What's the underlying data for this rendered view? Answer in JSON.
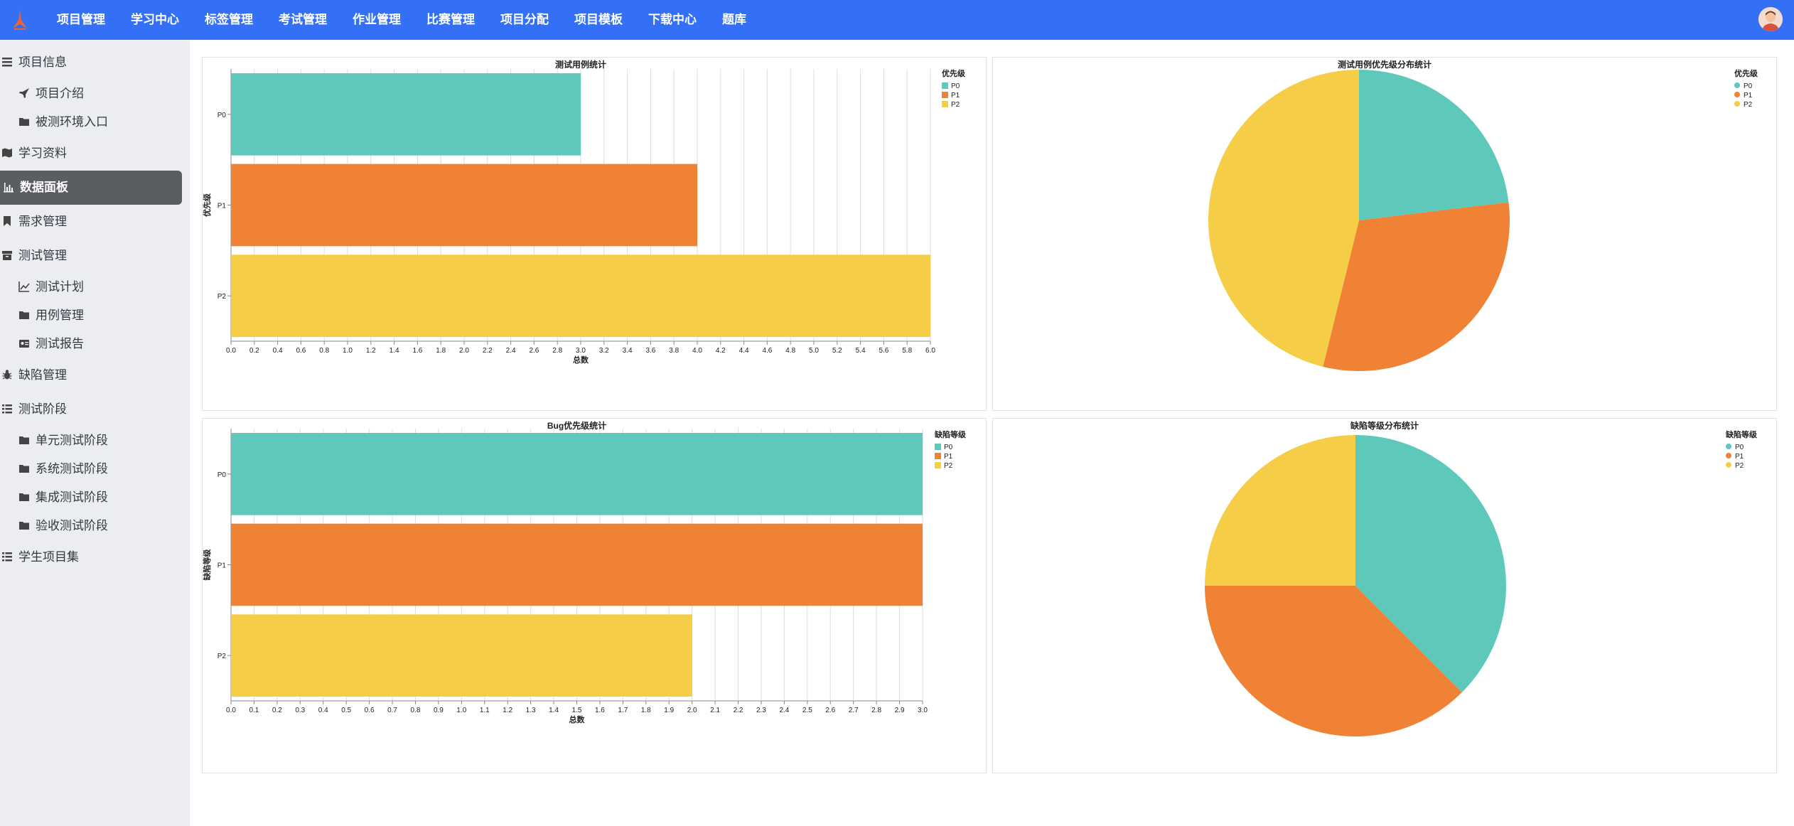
{
  "topnav": {
    "items": [
      "项目管理",
      "学习中心",
      "标签管理",
      "考试管理",
      "作业管理",
      "比赛管理",
      "项目分配",
      "项目模板",
      "下载中心",
      "题库"
    ]
  },
  "sidebar": {
    "project_info": "项目信息",
    "project_intro": "项目介绍",
    "test_env": "被测环境入口",
    "study": "学习资料",
    "dashboard": "数据面板",
    "requirements": "需求管理",
    "test_mgmt": "测试管理",
    "test_plan": "测试计划",
    "case_mgmt": "用例管理",
    "test_report": "测试报告",
    "defect_mgmt": "缺陷管理",
    "test_stage": "测试阶段",
    "unit_stage": "单元测试阶段",
    "system_stage": "系统测试阶段",
    "integration_stage": "集成测试阶段",
    "acceptance_stage": "验收测试阶段",
    "student_projects": "学生项目集"
  },
  "colors": {
    "P0": "#5ec9bb",
    "P1": "#ef8234",
    "P2": "#f6cd46",
    "nav": "#3370f5",
    "sidebar": "#ebedf1",
    "active": "#5a5e63"
  },
  "chart_data": [
    {
      "type": "bar",
      "title": "测试用例统计",
      "ylabel": "优先级",
      "xlabel": "总数",
      "categories": [
        "P0",
        "P1",
        "P2"
      ],
      "values": [
        3,
        4,
        6
      ],
      "xlim": [
        0,
        6
      ],
      "ticks": [
        "0.0",
        "0.2",
        "0.4",
        "0.6",
        "0.8",
        "1.0",
        "1.2",
        "1.4",
        "1.6",
        "1.8",
        "2.0",
        "2.2",
        "2.4",
        "2.6",
        "2.8",
        "3.0",
        "3.2",
        "3.4",
        "3.6",
        "3.8",
        "4.0",
        "4.2",
        "4.4",
        "4.6",
        "4.8",
        "5.0",
        "5.2",
        "5.4",
        "5.6",
        "5.8",
        "6.0"
      ],
      "legend_title": "优先级",
      "legend": [
        "P0",
        "P1",
        "P2"
      ],
      "grid": true
    },
    {
      "type": "pie",
      "title": "测试用例优先级分布统计",
      "categories": [
        "P0",
        "P1",
        "P2"
      ],
      "values": [
        3,
        4,
        6
      ],
      "legend_title": "优先级",
      "legend": [
        "P0",
        "P1",
        "P2"
      ]
    },
    {
      "type": "bar",
      "title": "Bug优先级统计",
      "ylabel": "缺陷等级",
      "xlabel": "总数",
      "categories": [
        "P0",
        "P1",
        "P2"
      ],
      "values": [
        3,
        3,
        2
      ],
      "xlim": [
        0,
        3
      ],
      "ticks": [
        "0.0",
        "0.1",
        "0.2",
        "0.3",
        "0.4",
        "0.5",
        "0.6",
        "0.7",
        "0.8",
        "0.9",
        "1.0",
        "1.1",
        "1.2",
        "1.3",
        "1.4",
        "1.5",
        "1.6",
        "1.7",
        "1.8",
        "1.9",
        "2.0",
        "2.1",
        "2.2",
        "2.3",
        "2.4",
        "2.5",
        "2.6",
        "2.7",
        "2.8",
        "2.9",
        "3.0"
      ],
      "legend_title": "缺陷等级",
      "legend": [
        "P0",
        "P1",
        "P2"
      ],
      "grid": true
    },
    {
      "type": "pie",
      "title": "缺陷等级分布统计",
      "categories": [
        "P0",
        "P1",
        "P2"
      ],
      "values": [
        3,
        3,
        2
      ],
      "legend_title": "缺陷等级",
      "legend": [
        "P0",
        "P1",
        "P2"
      ]
    }
  ]
}
